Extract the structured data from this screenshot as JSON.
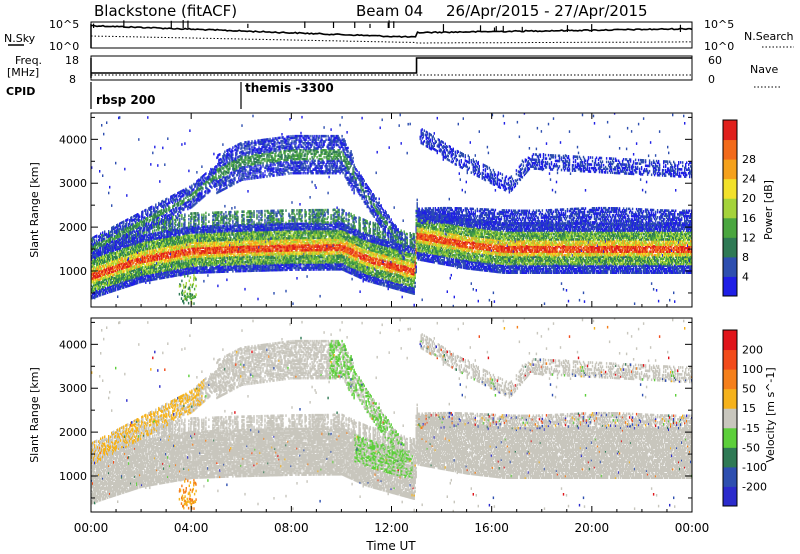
{
  "chart_data": {
    "type": "heatmap",
    "header": {
      "station": "Blackstone (fitACF)",
      "beam": "Beam 04",
      "dates": "26/Apr/2015 - 27/Apr/2015"
    },
    "panels": {
      "sky": {
        "left_label": "N.Sky",
        "left_ticks": [
          "10^5",
          "10^0"
        ],
        "right_ticks": [
          "10^5",
          "10^0"
        ],
        "right_label": "N.Search"
      },
      "freq": {
        "left_label_top": "Freq.",
        "left_label_unit": "[MHz]",
        "left_ticks": [
          "18",
          "8"
        ],
        "right_ticks": [
          "60",
          "0"
        ],
        "right_label": "Nave"
      },
      "cpid": {
        "label": "CPID",
        "programs": [
          {
            "name": "rbsp 200",
            "start_hour": 0
          },
          {
            "name": "themis -3300",
            "start_hour": 6
          }
        ]
      },
      "power": {
        "ylabel": "Slant Range [km]",
        "yticks": [
          "1000",
          "2000",
          "3000",
          "4000"
        ],
        "colorbar_label": "Power [dB]",
        "colorbar_ticks": [
          "4",
          "8",
          "12",
          "16",
          "20",
          "24",
          "28"
        ],
        "colors": [
          "#1f1fe6",
          "#2e4fb0",
          "#2f7a55",
          "#4aa63f",
          "#a4d33a",
          "#f2e12a",
          "#f5a11c",
          "#f26a1a",
          "#e0201c"
        ]
      },
      "velocity": {
        "ylabel": "Slant Range [km]",
        "yticks": [
          "1000",
          "2000",
          "3000",
          "4000"
        ],
        "colorbar_label": "Velocity [m s^-1]",
        "colorbar_ticks": [
          "200",
          "100",
          "50",
          "15",
          "-15",
          "-50",
          "-100",
          "-200"
        ],
        "colors": [
          "#2b2bcc",
          "#2e4fb0",
          "#2f7a55",
          "#5ccf3a",
          "#c8c6bd",
          "#f5b21c",
          "#f57f1a",
          "#f24b1a",
          "#e0141a"
        ]
      }
    },
    "xaxis": {
      "label": "Time UT",
      "ticks": [
        "00:00",
        "04:00",
        "08:00",
        "12:00",
        "16:00",
        "20:00",
        "00:00"
      ],
      "range_hours": [
        0,
        24
      ]
    },
    "yrange_km": [
      180,
      4600
    ],
    "features": {
      "main_band": [
        [
          0,
          900
        ],
        [
          0.5,
          1000
        ],
        [
          2,
          1280
        ],
        [
          4,
          1480
        ],
        [
          6,
          1520
        ],
        [
          8,
          1550
        ],
        [
          10,
          1560
        ],
        [
          11,
          1300
        ],
        [
          12.9,
          1000
        ],
        [
          13,
          1830
        ],
        [
          15,
          1620
        ],
        [
          16.5,
          1520
        ],
        [
          20,
          1520
        ],
        [
          24,
          1520
        ]
      ],
      "upper_band": [
        [
          0,
          1500
        ],
        [
          2,
          2100
        ],
        [
          4,
          2700
        ],
        [
          5,
          3200
        ],
        [
          6,
          3500
        ],
        [
          8,
          3650
        ],
        [
          10,
          3650
        ],
        [
          11,
          2700
        ],
        [
          12.5,
          1500
        ]
      ],
      "late_band": [
        [
          13.1,
          4100
        ],
        [
          14.5,
          3600
        ],
        [
          16,
          3150
        ],
        [
          16.7,
          2950
        ],
        [
          17.5,
          3500
        ],
        [
          24,
          3300
        ]
      ]
    }
  }
}
